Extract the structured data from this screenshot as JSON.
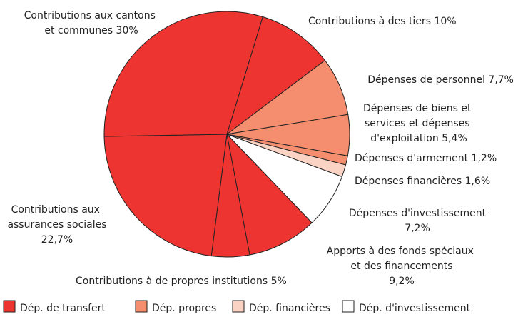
{
  "chart_data": {
    "type": "pie",
    "categories": [
      "Contributions à des tiers",
      "Dépenses de personnel",
      "Dépenses de biens et services et dépenses d'exploitation",
      "Dépenses d'armement",
      "Dépenses financières",
      "Dépenses d'investissement",
      "Apports à des fonds spéciaux et des financements spéciaux",
      "Contributions à de propres institutions",
      "Contributions aux assurances sociales",
      "Contributions aux cantons et communes"
    ],
    "values": [
      10,
      7.7,
      5.4,
      1.2,
      1.6,
      7.2,
      9.2,
      5,
      22.7,
      30
    ],
    "value_labels": [
      "10%",
      "7,7%",
      "5,4%",
      "1,2%",
      "1,6%",
      "7,2%",
      "9,2%",
      "5%",
      "22,7%",
      "30%"
    ],
    "colors": [
      "#ee3430",
      "#f48e6e",
      "#f48e6e",
      "#f48e6e",
      "#fbd3c4",
      "#ffffff",
      "#ee3430",
      "#ee3430",
      "#ee3430",
      "#ee3430"
    ],
    "legend": [
      {
        "name": "Dép. de transfert",
        "color": "#ee3430"
      },
      {
        "name": "Dép. propres",
        "color": "#f48e6e"
      },
      {
        "name": "Dép. financières",
        "color": "#fbd3c4"
      },
      {
        "name": "Dép. d'investissement",
        "color": "#ffffff"
      }
    ]
  }
}
